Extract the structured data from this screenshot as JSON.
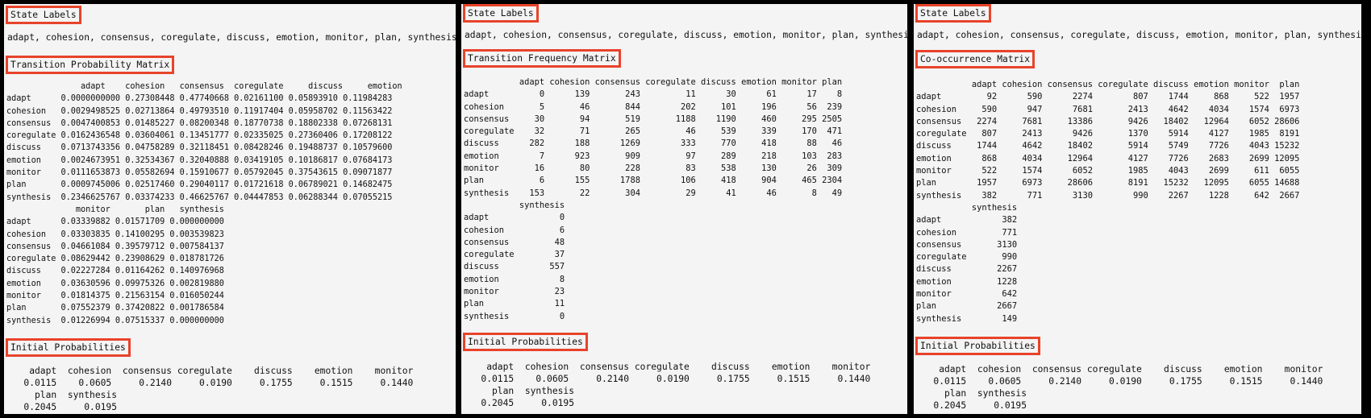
{
  "panels": [
    {
      "state_labels_heading": "State Labels",
      "state_labels": "adapt, cohesion, consensus, coregulate, discuss, emotion, monitor, plan, synthesis",
      "matrix_heading": "Transition Probability Matrix",
      "matrix_text": "               adapt    cohesion   consensus  coregulate     discuss     emotion\nadapt      0.0000000000 0.27308448 0.47740668 0.02161100 0.05893910 0.11984283\ncohesion   0.0029498525 0.02713864 0.49793510 0.11917404 0.05958702 0.11563422\nconsensus  0.0047400853 0.01485227 0.08200348 0.18770738 0.18802338 0.07268131\ncoregulate 0.0162436548 0.03604061 0.13451777 0.02335025 0.27360406 0.17208122\ndiscuss    0.0713743356 0.04758289 0.32118451 0.08428246 0.19488737 0.10579600\nemotion    0.0024673951 0.32534367 0.32040888 0.03419105 0.10186817 0.07684173\nmonitor    0.0111653873 0.05582694 0.15910677 0.05792045 0.37543615 0.09071877\nplan       0.0009745006 0.02517460 0.29040117 0.01721618 0.06789021 0.14682475\nsynthesis  0.2346625767 0.03374233 0.46625767 0.04447853 0.06288344 0.07055215\n              monitor       plan   synthesis\nadapt      0.03339882 0.01571709 0.000000000\ncohesion   0.03303835 0.14100295 0.003539823\nconsensus  0.04661084 0.39579712 0.007584137\ncoregulate 0.08629442 0.23908629 0.018781726\ndiscuss    0.02227284 0.01164262 0.140976968\nemotion    0.03630596 0.09975326 0.002819880\nmonitor    0.01814375 0.21563154 0.016050244\nplan       0.07552379 0.37420822 0.001786584\nsynthesis  0.01226994 0.07515337 0.000000000",
      "initial_heading": "Initial Probabilities",
      "initial_text": "    adapt  cohesion  consensus coregulate    discuss    emotion    monitor\n   0.0115    0.0605     0.2140     0.0190     0.1755     0.1515     0.1440\n     plan  synthesis\n   0.2045     0.0195"
    },
    {
      "state_labels_heading": "State Labels",
      "state_labels": "adapt, cohesion, consensus, coregulate, discuss, emotion, monitor, plan, synthesis",
      "matrix_heading": "Transition Frequency Matrix",
      "matrix_text": "           adapt cohesion consensus coregulate discuss emotion monitor plan\nadapt          0      139       243         11      30      61      17    8\ncohesion       5       46       844        202     101     196      56  239\nconsensus     30       94       519       1188    1190     460     295 2505\ncoregulate    32       71       265         46     539     339     170  471\ndiscuss      282      188      1269        333     770     418      88   46\nemotion        7      923       909         97     289     218     103  283\nmonitor       16       80       228         83     538     130      26  309\nplan           6      155      1788        106     418     904     465 2304\nsynthesis    153       22       304         29      41      46       8   49\n           synthesis\nadapt              0\ncohesion           6\nconsensus         48\ncoregulate        37\ndiscuss          557\nemotion            8\nmonitor           23\nplan              11\nsynthesis          0",
      "initial_heading": "Initial Probabilities",
      "initial_text": "    adapt  cohesion  consensus coregulate    discuss    emotion    monitor\n   0.0115    0.0605     0.2140     0.0190     0.1755     0.1515     0.1440\n     plan  synthesis\n   0.2045     0.0195"
    },
    {
      "state_labels_heading": "State Labels",
      "state_labels": "adapt, cohesion, consensus, coregulate, discuss, emotion, monitor, plan, synthesis",
      "matrix_heading": "Co-occurrence Matrix",
      "matrix_text": "           adapt cohesion consensus coregulate discuss emotion monitor  plan\nadapt         92      590      2274        807    1744     868     522  1957\ncohesion     590      947      7681       2413    4642    4034    1574  6973\nconsensus   2274     7681     13386       9426   18402   12964    6052 28606\ncoregulate   807     2413      9426       1370    5914    4127    1985  8191\ndiscuss     1744     4642     18402       5914    5749    7726    4043 15232\nemotion      868     4034     12964       4127    7726    2683    2699 12095\nmonitor      522     1574      6052       1985    4043    2699     611  6055\nplan        1957     6973     28606       8191   15232   12095    6055 14688\nsynthesis    382      771      3130        990    2267    1228     642  2667\n           synthesis\nadapt            382\ncohesion         771\nconsensus       3130\ncoregulate       990\ndiscuss         2267\nemotion         1228\nmonitor          642\nplan            2667\nsynthesis        149",
      "initial_heading": "Initial Probabilities",
      "initial_text": "    adapt  cohesion  consensus coregulate    discuss    emotion    monitor\n   0.0115    0.0605     0.2140     0.0190     0.1755     0.1515     0.1440\n     plan  synthesis\n   0.2045     0.0195"
    }
  ]
}
